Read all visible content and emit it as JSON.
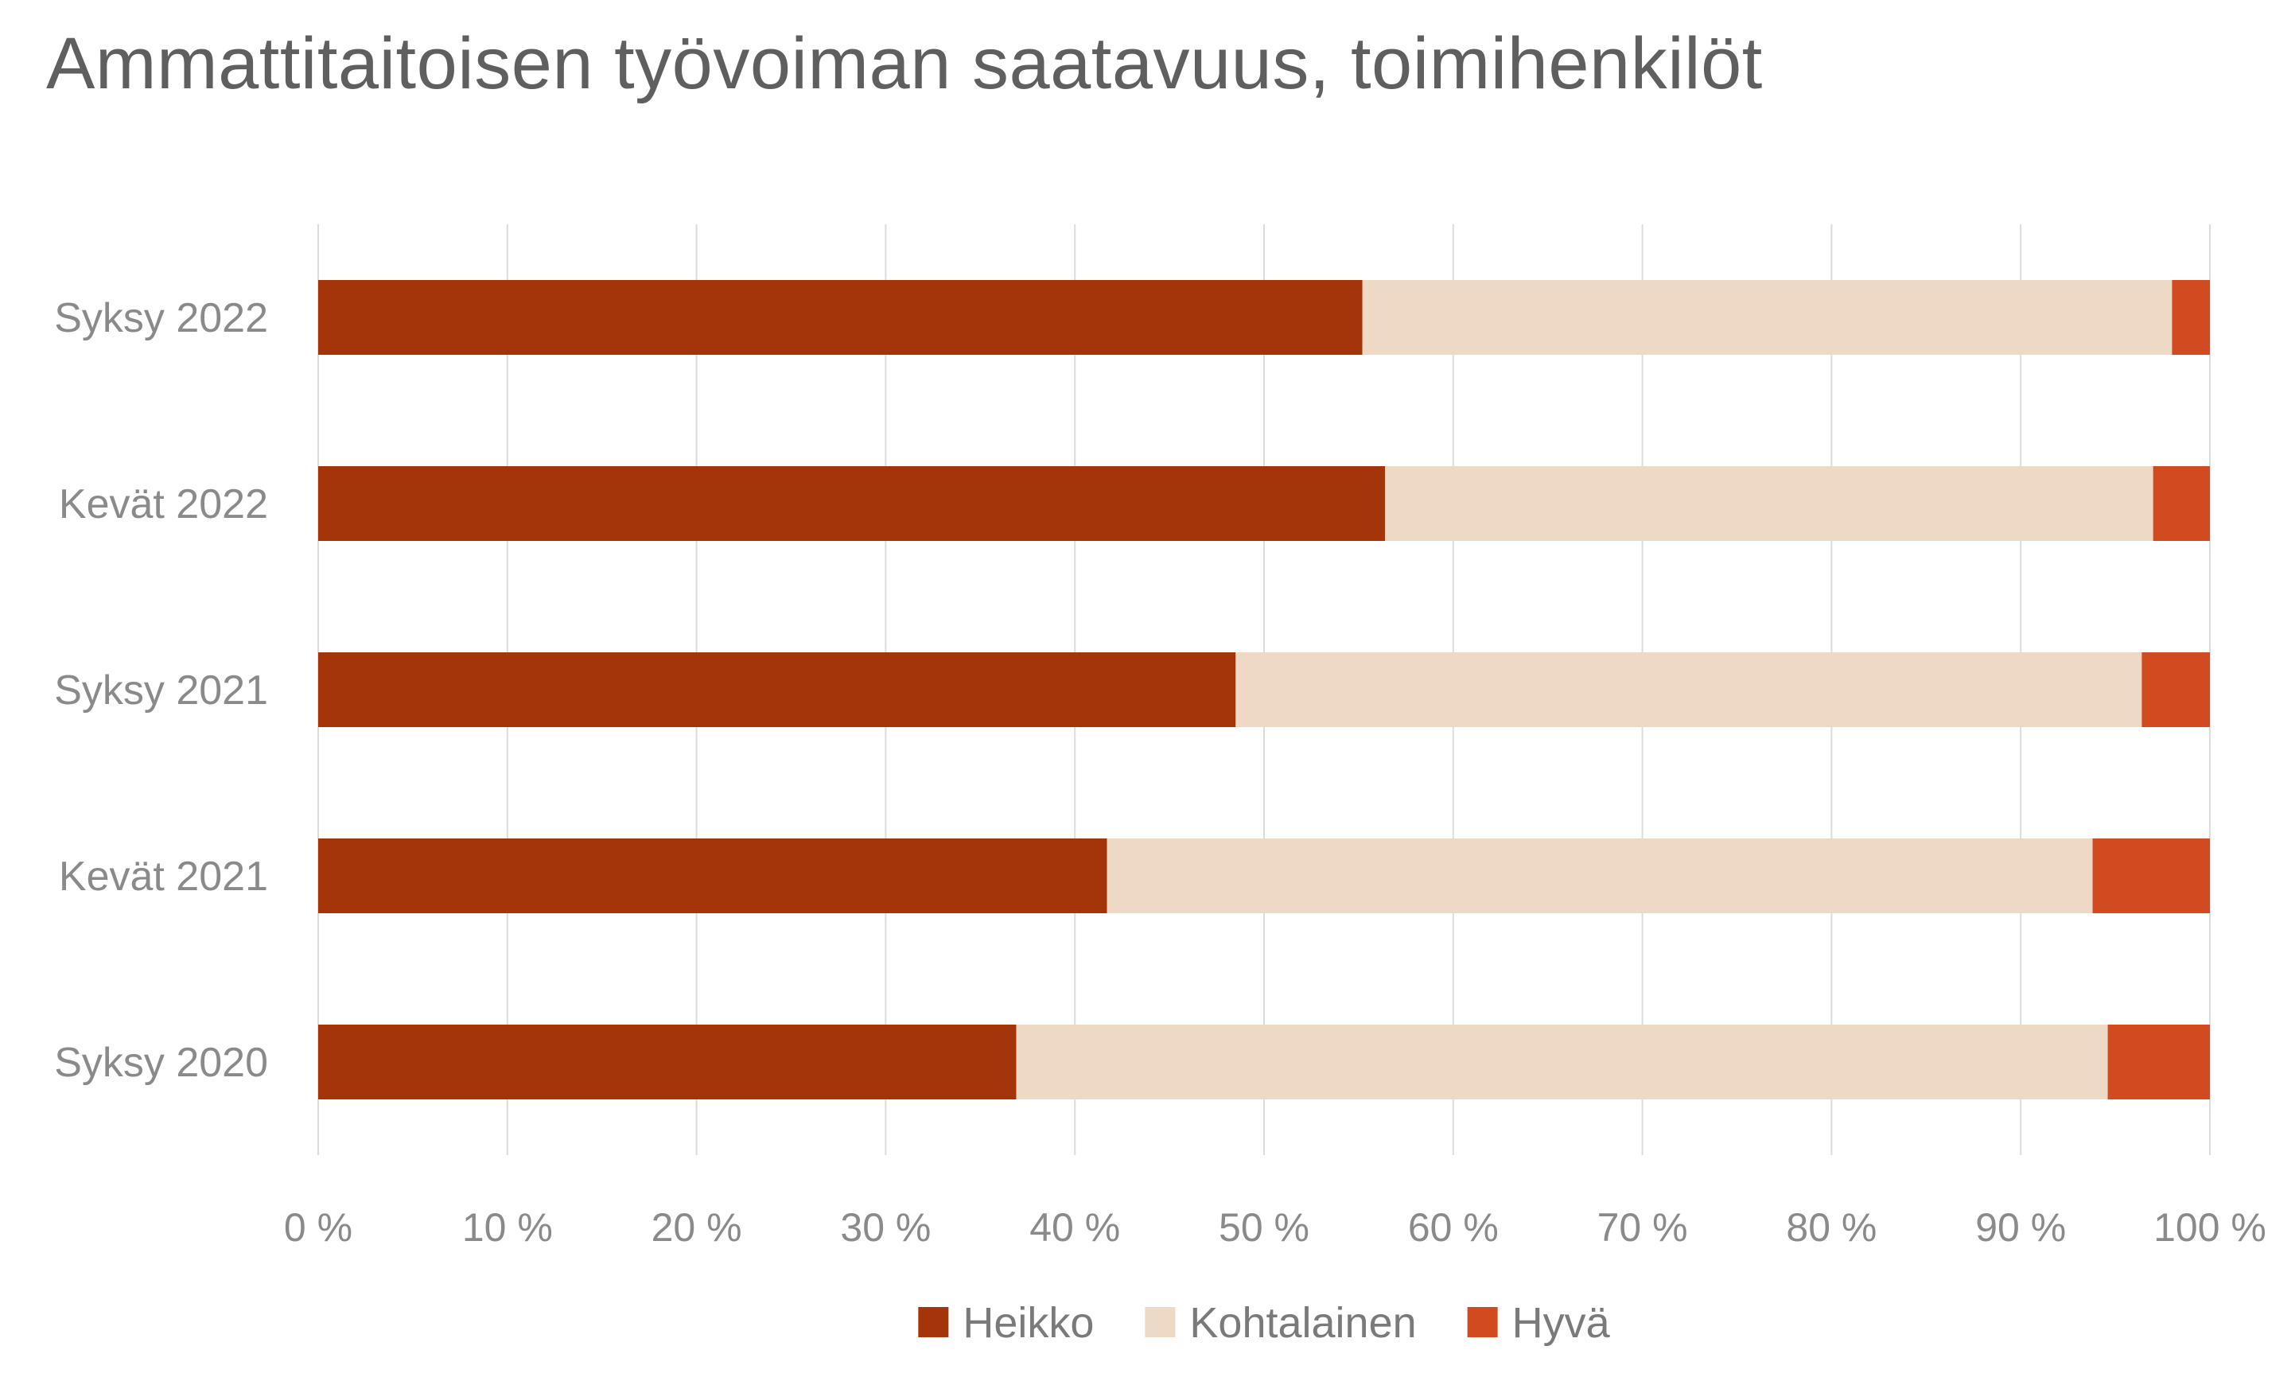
{
  "chart_data": {
    "type": "bar",
    "orientation": "horizontal",
    "stacked": "percent",
    "title": "Ammattitaitoisen työvoiman saatavuus, toimihenkilöt",
    "categories": [
      "Syksy 2022",
      "Kevät 2022",
      "Syksy 2021",
      "Kevät 2021",
      "Syksy 2020"
    ],
    "series": [
      {
        "name": "Heikko",
        "color": "#a33508",
        "values": [
          55.2,
          56.4,
          48.5,
          41.7,
          36.9
        ]
      },
      {
        "name": "Kohtalainen",
        "color": "#eed9c4",
        "values": [
          42.8,
          40.6,
          47.9,
          52.1,
          57.7
        ]
      },
      {
        "name": "Hyvä",
        "color": "#d24a1f",
        "values": [
          2.0,
          3.0,
          3.6,
          6.2,
          5.4
        ]
      }
    ],
    "xlim": [
      0,
      100
    ],
    "xticks": [
      0,
      10,
      20,
      30,
      40,
      50,
      60,
      70,
      80,
      90,
      100
    ],
    "xtick_labels": [
      "0 %",
      "10 %",
      "20 %",
      "30 %",
      "40 %",
      "50 %",
      "60 %",
      "70 %",
      "80 %",
      "90 %",
      "100 %"
    ],
    "grid": "vertical",
    "legend_position": "bottom"
  }
}
